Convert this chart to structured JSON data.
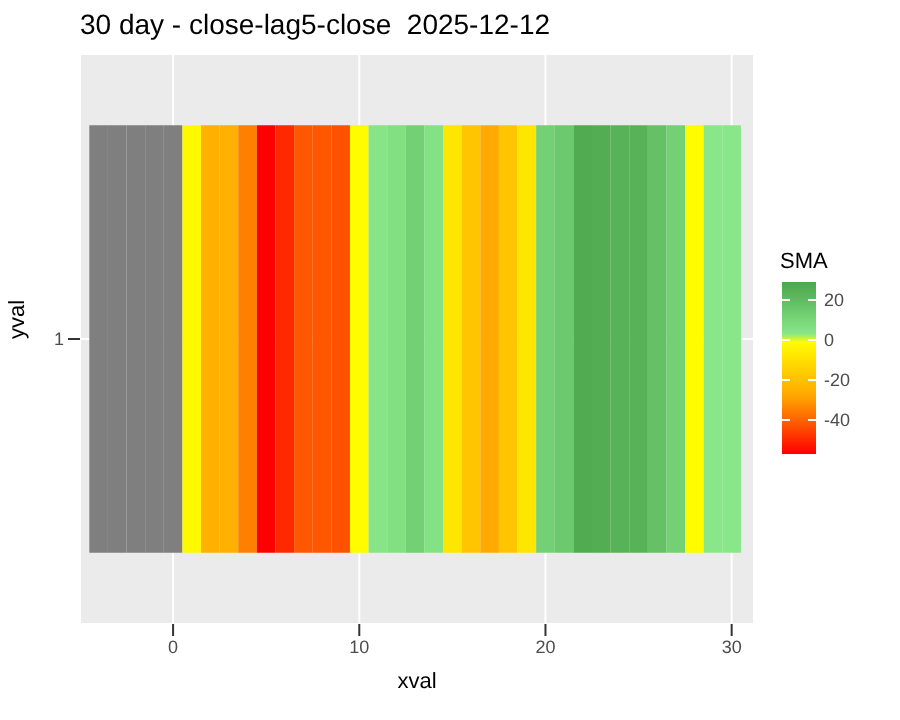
{
  "chart_data": {
    "type": "heatmap",
    "title": "30 day - close-lag5-close  2025-12-12",
    "xlabel": "xval",
    "ylabel": "yval",
    "clabel": "SMA",
    "x": [
      -4,
      -3,
      -2,
      -1,
      0,
      1,
      2,
      3,
      4,
      5,
      6,
      7,
      8,
      9,
      10,
      11,
      12,
      13,
      14,
      15,
      16,
      17,
      18,
      19,
      20,
      21,
      22,
      23,
      24,
      25,
      26,
      27,
      28,
      29,
      30
    ],
    "y_categories": [
      "1"
    ],
    "cells": [
      [
        null,
        null,
        null,
        null,
        null,
        -2,
        -25,
        -25,
        -35,
        -57,
        -50,
        -42,
        -42,
        -43,
        -1,
        4,
        6,
        12,
        5,
        -8,
        -18,
        -27,
        -18,
        -8,
        12,
        15,
        27,
        26,
        24,
        24,
        18,
        12,
        -1,
        3,
        3
      ]
    ],
    "xlim": [
      -5,
      31.2
    ],
    "xticks": [
      0,
      10,
      20,
      30
    ],
    "clim": [
      -57,
      29
    ],
    "cticks": [
      -40,
      -20,
      0,
      20
    ],
    "grid": true
  }
}
